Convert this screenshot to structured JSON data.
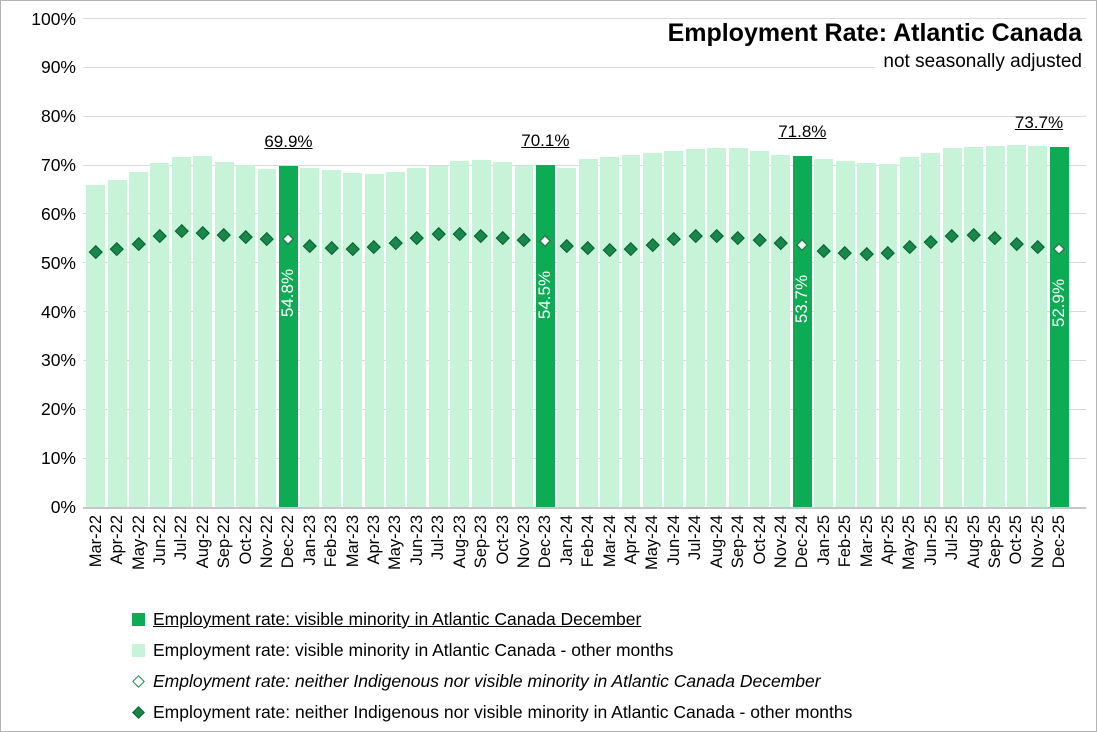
{
  "title": "Employment Rate: Atlantic Canada",
  "subtitle": "not seasonally adjusted",
  "colors": {
    "bar_other": "#c7f4d9",
    "bar_december": "#0cab54",
    "marker_fill": "#17874a",
    "marker_border": "#0d5f33",
    "marker_december_fill": "#ffffff",
    "gridline": "#d9d9d9",
    "axis_line": "#c6c6c6",
    "label_text": "#000000",
    "inbar_label_text": "#ffffff"
  },
  "legend": [
    {
      "label": "Employment rate: visible minority in Atlantic Canada December",
      "marker": "square-solid",
      "style": "underline"
    },
    {
      "label": "Employment rate: visible minority in Atlantic Canada - other months",
      "marker": "square-light",
      "style": "normal"
    },
    {
      "label": "Employment rate: neither Indigenous nor visible minority in Atlantic Canada December",
      "marker": "diamond-hollow",
      "style": "italic"
    },
    {
      "label": "Employment rate: neither Indigenous nor visible minority in Atlantic Canada - other months",
      "marker": "diamond-solid",
      "style": "normal"
    }
  ],
  "chart_data": {
    "type": "bar",
    "grid": true,
    "legend_position": "bottom",
    "ylim": [
      0,
      100
    ],
    "y_ticks": [
      "0%",
      "10%",
      "20%",
      "30%",
      "40%",
      "50%",
      "60%",
      "70%",
      "80%",
      "90%",
      "100%"
    ],
    "categories": [
      "Mar-22",
      "Apr-22",
      "May-22",
      "Jun-22",
      "Jul-22",
      "Aug-22",
      "Sep-22",
      "Oct-22",
      "Nov-22",
      "Dec-22",
      "Jan-23",
      "Feb-23",
      "Mar-23",
      "Apr-23",
      "May-23",
      "Jun-23",
      "Jul-23",
      "Aug-23",
      "Sep-23",
      "Oct-23",
      "Nov-23",
      "Dec-23",
      "Jan-24",
      "Feb-24",
      "Mar-24",
      "Apr-24",
      "May-24",
      "Jun-24",
      "Jul-24",
      "Aug-24",
      "Sep-24",
      "Oct-24",
      "Nov-24",
      "Dec-24",
      "Jan-25",
      "Feb-25",
      "Mar-25",
      "Apr-25",
      "May-25",
      "Jun-25",
      "Jul-25",
      "Aug-25",
      "Sep-25",
      "Oct-25",
      "Nov-25",
      "Dec-25"
    ],
    "series": [
      {
        "name": "Employment rate: visible minority in Atlantic Canada",
        "type": "bar",
        "values": [
          66.0,
          66.9,
          68.5,
          70.4,
          71.7,
          71.9,
          70.7,
          70.0,
          69.1,
          69.9,
          69.4,
          69.0,
          68.4,
          68.2,
          68.6,
          69.3,
          69.9,
          70.9,
          71.1,
          70.7,
          69.8,
          70.1,
          69.4,
          71.2,
          71.6,
          72.1,
          72.4,
          72.8,
          73.3,
          73.5,
          73.5,
          72.9,
          72.1,
          71.8,
          71.3,
          70.9,
          70.5,
          70.3,
          71.6,
          72.5,
          73.4,
          73.7,
          73.8,
          74.1,
          74.0,
          73.7
        ]
      },
      {
        "name": "Employment rate: neither Indigenous nor visible minority in Atlantic Canada",
        "type": "scatter",
        "values": [
          52.2,
          52.8,
          53.9,
          55.6,
          56.6,
          56.2,
          55.8,
          55.3,
          55.0,
          54.8,
          53.5,
          53.1,
          52.8,
          53.2,
          54.0,
          55.1,
          56.0,
          56.0,
          55.6,
          55.1,
          54.8,
          54.5,
          53.4,
          53.0,
          52.7,
          52.9,
          53.7,
          55.0,
          55.5,
          55.6,
          55.1,
          54.7,
          54.1,
          53.7,
          52.5,
          52.1,
          51.9,
          52.1,
          53.2,
          54.4,
          55.5,
          55.8,
          55.1,
          53.9,
          53.2,
          52.9
        ]
      }
    ],
    "highlight_months": [
      "Dec-22",
      "Dec-23",
      "Dec-24",
      "Dec-25"
    ],
    "highlight_bar_labels": [
      "69.9%",
      "70.1%",
      "71.8%",
      "73.7%"
    ],
    "highlight_marker_labels": [
      "54.8%",
      "54.5%",
      "53.7%",
      "52.9%"
    ]
  }
}
